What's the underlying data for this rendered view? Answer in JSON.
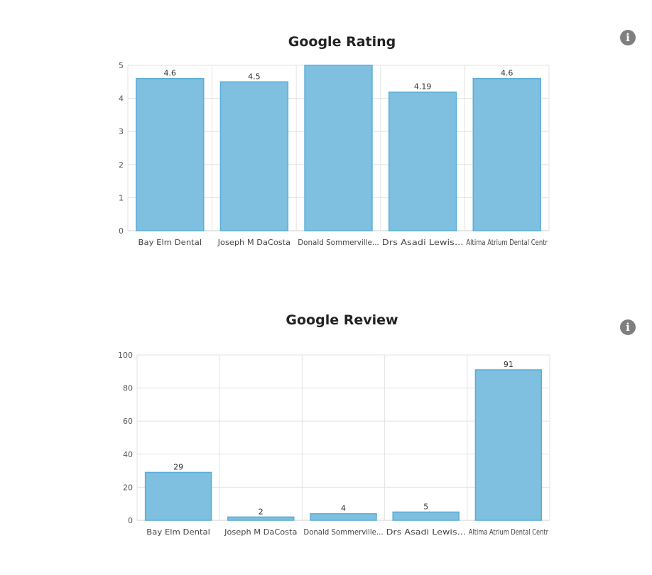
{
  "chart_data": [
    {
      "type": "bar",
      "title": "Google Rating",
      "info_icon": "info-icon",
      "categories": [
        "Bay Elm Dental",
        "Joseph M DaCosta",
        "Donald Sommerville...",
        "Drs Asadi Lewis...",
        "Altima Atrium Dental Centr"
      ],
      "values": [
        4.6,
        4.5,
        5,
        4.19,
        4.6
      ],
      "data_labels": [
        "4.6",
        "4.5",
        "",
        "4.19",
        "4.6"
      ],
      "ylim": [
        0,
        5
      ],
      "yticks": [
        0,
        1,
        2,
        3,
        4,
        5
      ],
      "grid": true,
      "bar_color": "#7fbfe0",
      "bar_border_color": "#5aaed6",
      "xlabel": "",
      "ylabel": ""
    },
    {
      "type": "bar",
      "title": "Google Review",
      "info_icon": "info-icon",
      "categories": [
        "Bay Elm Dental",
        "Joseph M DaCosta",
        "Donald Sommerville...",
        "Drs Asadi Lewis...",
        "Altima Atrium Dental Centr"
      ],
      "values": [
        29,
        2,
        4,
        5,
        91
      ],
      "data_labels": [
        "29",
        "2",
        "4",
        "5",
        "91"
      ],
      "ylim": [
        0,
        100
      ],
      "yticks": [
        0,
        20,
        40,
        60,
        80,
        100
      ],
      "grid": true,
      "bar_color": "#7fbfe0",
      "bar_border_color": "#5aaed6",
      "xlabel": "",
      "ylabel": ""
    }
  ]
}
